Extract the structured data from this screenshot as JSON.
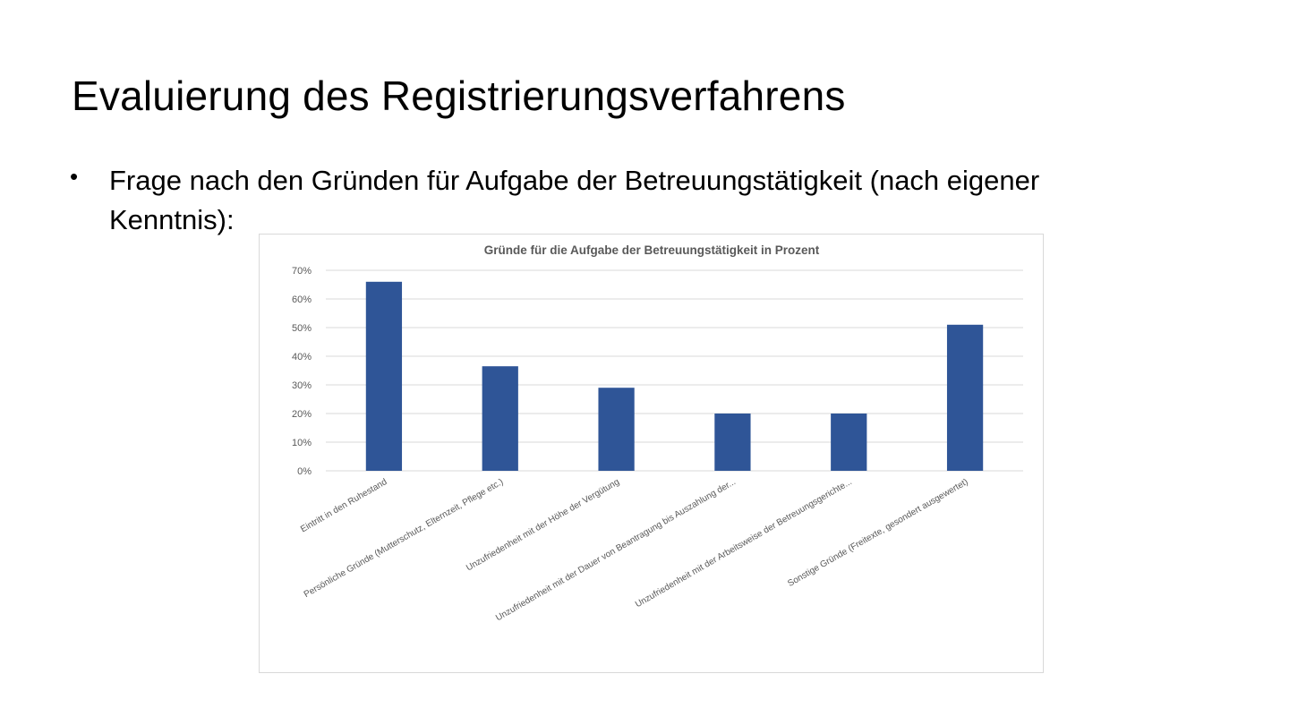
{
  "slide": {
    "title": "Evaluierung des Registrierungsverfahrens",
    "bullet": "Frage nach den Gründen für Aufgabe der Betreuungstätigkeit (nach eigener Kenntnis):"
  },
  "colors": {
    "bar": "#2F5597",
    "grid": "#D9D9D9",
    "text": "#595959"
  },
  "chart_data": {
    "type": "bar",
    "title": "Gründe für die Aufgabe der Betreuungstätigkeit in Prozent",
    "xlabel": "",
    "ylabel": "",
    "ylim": [
      0,
      70
    ],
    "yticks": [
      "0%",
      "10%",
      "20%",
      "30%",
      "40%",
      "50%",
      "60%",
      "70%"
    ],
    "grid": true,
    "legend": "none",
    "categories": [
      "Eintritt in den Ruhestand",
      "Persönliche Gründe (Mutterschutz, Elternzeit, Pflege etc.)",
      "Unzufriedenheit mit der Höhe der Vergütung",
      "Unzufriedenheit mit der Dauer von Beantragung bis Auszahlung der...",
      "Unzufriedenheit mit der Arbeitsweise der Betreuungsgerichte...",
      "Sonstige Gründe (Freitexte, gesondert ausgewertet)"
    ],
    "values": [
      66,
      36.5,
      29,
      20,
      20,
      51
    ]
  }
}
